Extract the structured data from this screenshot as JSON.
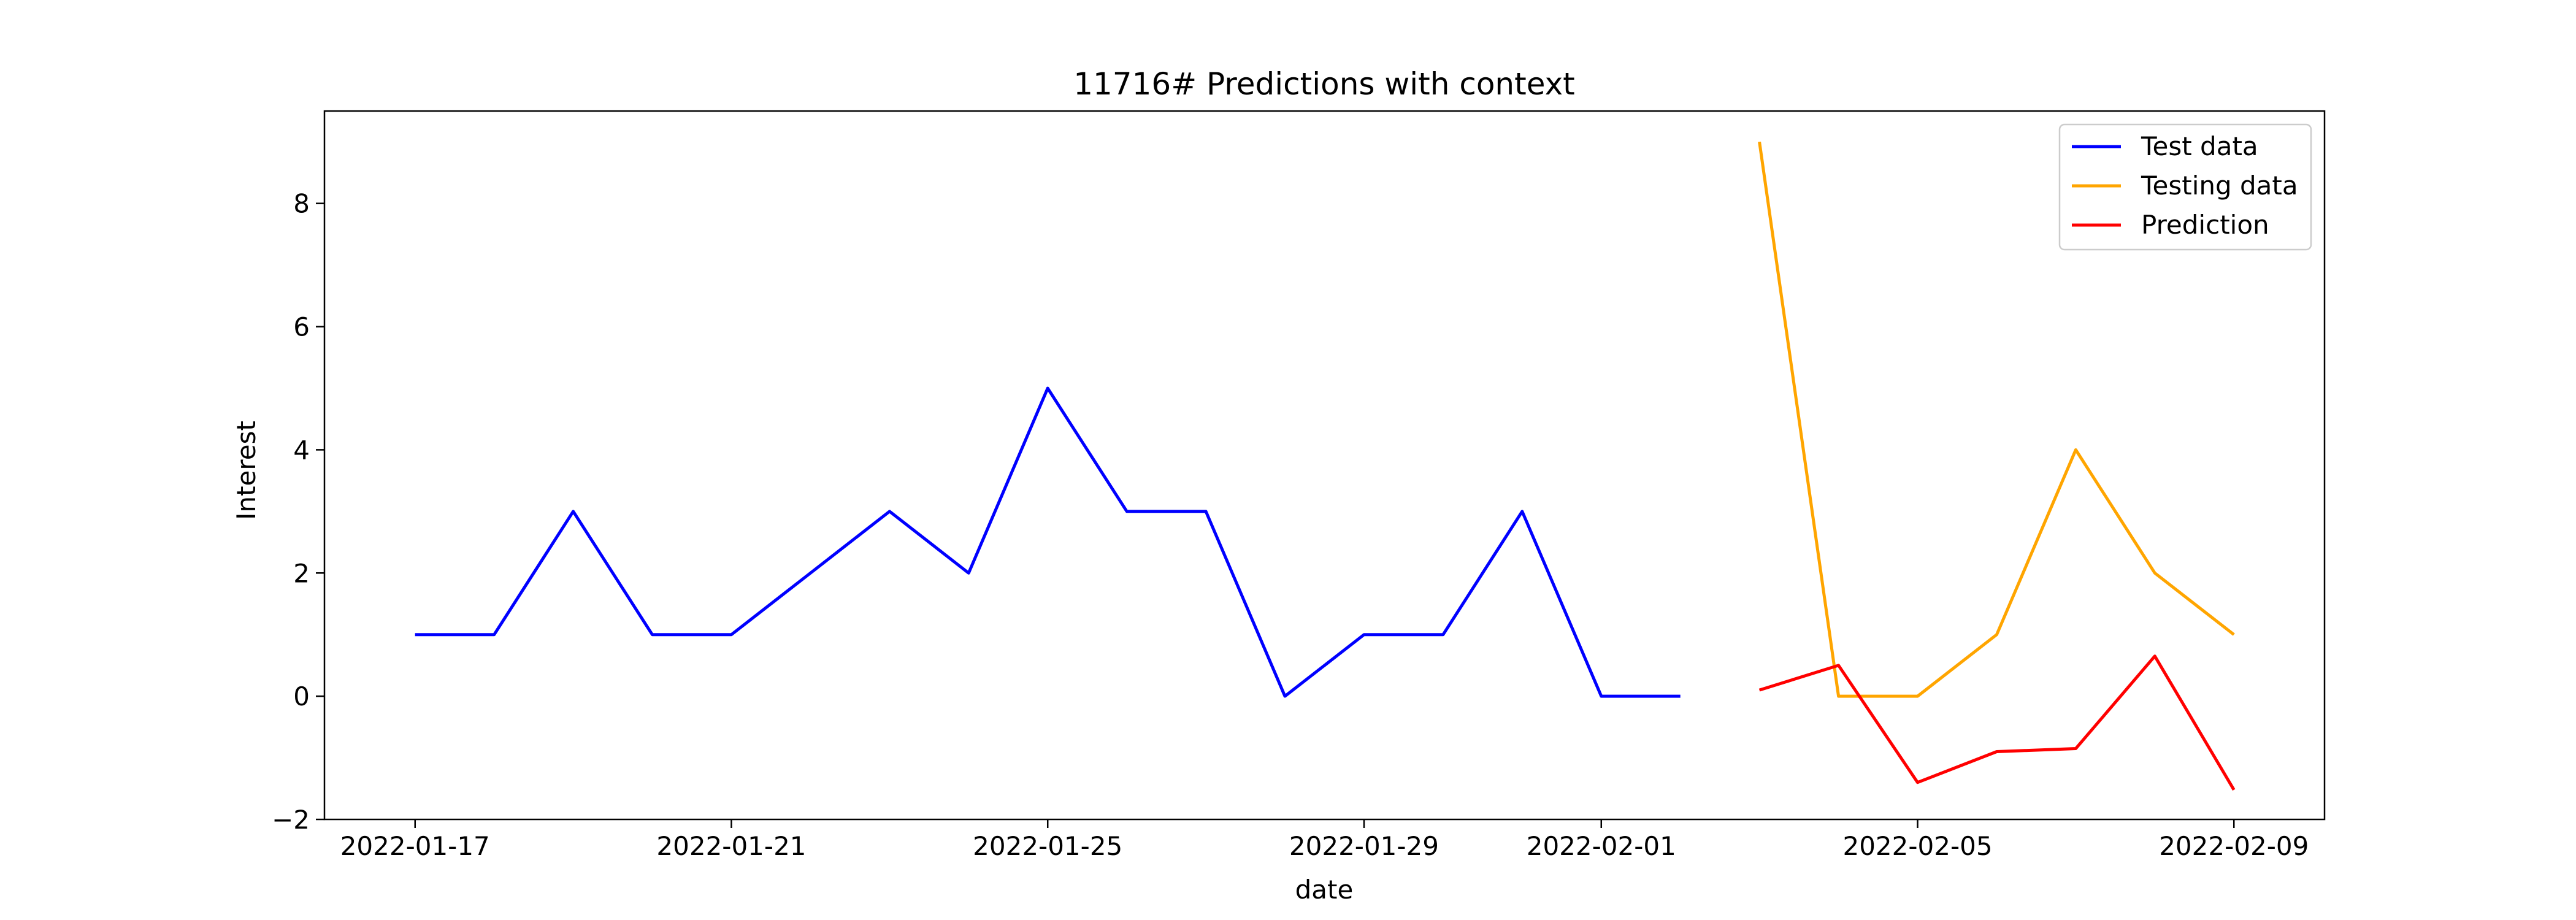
{
  "chart_data": {
    "type": "line",
    "title": "11716# Predictions with context",
    "xlabel": "date",
    "ylabel": "Interest",
    "xlim": [
      "2022-01-15T20:30",
      "2022-02-10T03:30"
    ],
    "ylim": [
      -2.0,
      9.5
    ],
    "x_ticks": [
      "2022-01-17",
      "2022-01-21",
      "2022-01-25",
      "2022-01-29",
      "2022-02-01",
      "2022-02-05",
      "2022-02-09"
    ],
    "y_ticks": [
      -2,
      0,
      2,
      4,
      6,
      8
    ],
    "grid": false,
    "legend": {
      "position": "top-right"
    },
    "series": [
      {
        "name": "Test data",
        "color": "#0000ff",
        "x": [
          "2022-01-17",
          "2022-01-18",
          "2022-01-19",
          "2022-01-20",
          "2022-01-21",
          "2022-01-22",
          "2022-01-23",
          "2022-01-24",
          "2022-01-25",
          "2022-01-26",
          "2022-01-27",
          "2022-01-28",
          "2022-01-29",
          "2022-01-30",
          "2022-01-31",
          "2022-02-01",
          "2022-02-02"
        ],
        "values": [
          1,
          1,
          3,
          1,
          1,
          2,
          3,
          2,
          5,
          3,
          3,
          0,
          1,
          1,
          3,
          0,
          0
        ]
      },
      {
        "name": "Testing data",
        "color": "#ffa500",
        "x": [
          "2022-02-03",
          "2022-02-04",
          "2022-02-05",
          "2022-02-06",
          "2022-02-07",
          "2022-02-08",
          "2022-02-09"
        ],
        "values": [
          9,
          0,
          0,
          1,
          4,
          2,
          1
        ]
      },
      {
        "name": "Prediction",
        "color": "#ff0000",
        "x": [
          "2022-02-03",
          "2022-02-04",
          "2022-02-05",
          "2022-02-06",
          "2022-02-07",
          "2022-02-08",
          "2022-02-09"
        ],
        "values": [
          0.1,
          0.5,
          -1.4,
          -0.9,
          -0.85,
          0.65,
          -1.52
        ]
      }
    ]
  }
}
